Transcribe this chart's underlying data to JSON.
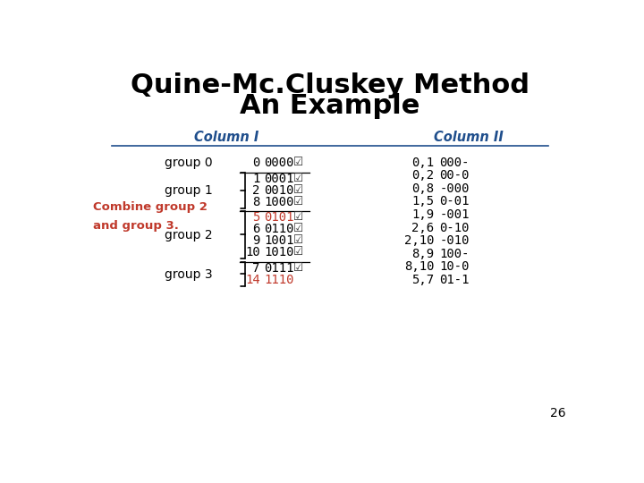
{
  "title_line1": "Quine-Mc.Cluskey Method",
  "title_line2": "An Example",
  "title_color": "#000000",
  "col1_header": "Column I",
  "col2_header": "Column II",
  "header_color": "#1f4e8c",
  "bg_color": "#ffffff",
  "combine_text": "Combine group 2\nand group 3.",
  "combine_color": "#c0392b",
  "slide_number": "26",
  "col1_groups": [
    {
      "label": "group 0",
      "rows": [
        [
          "0",
          "0000",
          true
        ]
      ]
    },
    {
      "label": "group 1",
      "rows": [
        [
          "1",
          "0001",
          true
        ],
        [
          "2",
          "0010",
          true
        ],
        [
          "8",
          "1000",
          true
        ]
      ]
    },
    {
      "label": "group 2",
      "rows": [
        [
          "5",
          "0101",
          true
        ],
        [
          "6",
          "0110",
          true
        ],
        [
          "9",
          "1001",
          true
        ],
        [
          "10",
          "1010",
          true
        ]
      ]
    },
    {
      "label": "group 3",
      "rows": [
        [
          "7",
          "0111",
          true
        ],
        [
          "14",
          "1110",
          false
        ]
      ]
    }
  ],
  "orange_rows": [
    [
      2,
      0
    ],
    [
      3,
      1
    ]
  ],
  "col2_rows": [
    [
      "0,1",
      "000-"
    ],
    [
      "0,2",
      "00-0"
    ],
    [
      "0,8",
      "-000"
    ],
    [
      "1,5",
      "0-01"
    ],
    [
      "1,9",
      "-001"
    ],
    [
      "2,6",
      "0-10"
    ],
    [
      "2,10",
      "-010"
    ],
    [
      "8,9",
      "100-"
    ],
    [
      "8,10",
      "10-0"
    ],
    [
      "5,7",
      "01-1"
    ]
  ],
  "header_line_color": "#1f4e8c",
  "sep_line_color": "#000000",
  "check_color": "#333333",
  "orange_color": "#c0392b",
  "black_color": "#000000"
}
